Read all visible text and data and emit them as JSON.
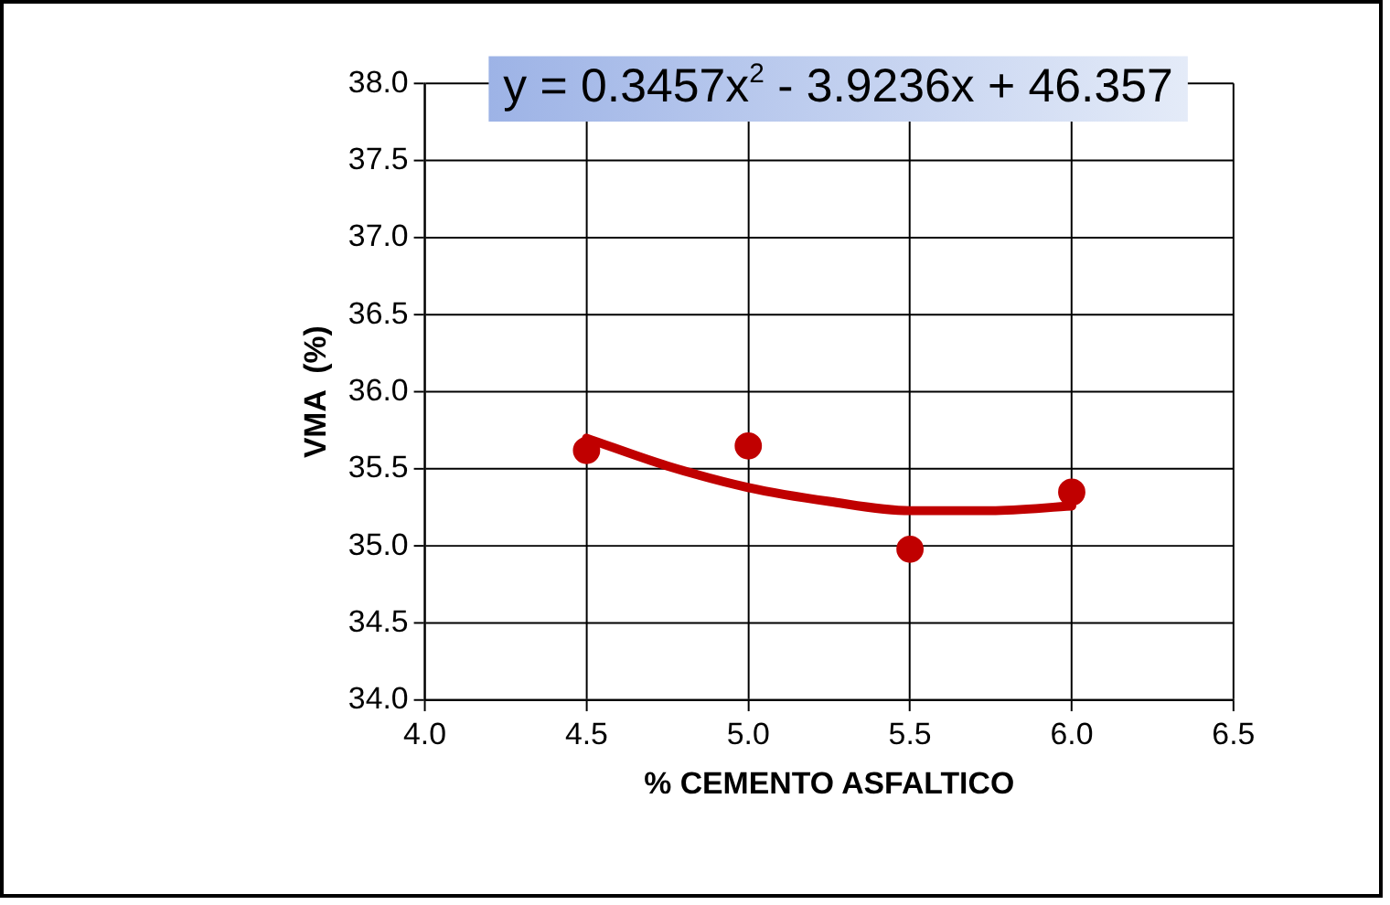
{
  "chart_data": {
    "type": "scatter",
    "xlabel": "% CEMENTO ASFALTICO",
    "ylabel": "VMA  (%)",
    "annotations": [
      "y = 0.3457x$^{2}$ - 3.9236x + 46.357"
    ],
    "series": [
      {
        "color": "#c00000",
        "marker": "circle",
        "x": [
          4.5,
          5.0,
          5.5,
          6.0
        ],
        "values": [
          35.62,
          35.65,
          34.98,
          35.35
        ]
      },
      {
        "type": "line",
        "color": "#c00000",
        "marker": "none",
        "x": [
          4.5,
          4.75,
          5.0,
          5.25,
          5.5,
          5.75,
          6.0
        ],
        "values": [
          35.7,
          35.52,
          35.38,
          35.29,
          35.23,
          35.23,
          35.26
        ]
      }
    ],
    "xlim": [
      4.0,
      6.5
    ],
    "xticks": [
      {
        "value": 4,
        "label": "4.0"
      },
      4.5,
      {
        "value": 5,
        "label": "5.0"
      },
      5.5,
      {
        "value": 6,
        "label": "6.0"
      },
      6.5
    ],
    "ylim": [
      34.0,
      38.0
    ],
    "yticks": [
      {
        "value": 34,
        "label": "34.0"
      },
      34.5,
      {
        "value": 35,
        "label": "35.0"
      },
      35.5,
      {
        "value": 36,
        "label": "36.0"
      },
      36.5,
      {
        "value": 37,
        "label": "37.0"
      },
      37.5,
      {
        "value": 38,
        "label": "38.0"
      }
    ],
    "grid": true,
    "legend": false
  }
}
